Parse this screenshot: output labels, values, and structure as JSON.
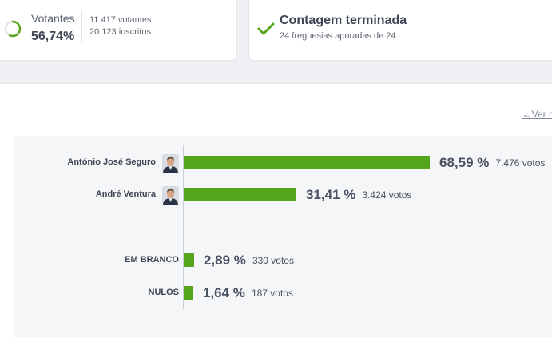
{
  "votantes": {
    "label": "Votantes",
    "percent": "56,74%",
    "percent_value": 56.74,
    "votes_line": "11.417 votantes",
    "inscritos_line": "20.123 inscritos"
  },
  "contagem": {
    "title": "Contagem terminada",
    "subtitle": "24 freguesias apuradas de 24"
  },
  "back_link": {
    "arrow": "←",
    "label": "Ver r"
  },
  "results": [
    {
      "name": "António José Seguro",
      "percent": "68,59 %",
      "votes": "7.476 votos",
      "share": 68.59,
      "avatar": "avatar-photo"
    },
    {
      "name": "André Ventura",
      "percent": "31,41 %",
      "votes": "3.424 votos",
      "share": 31.41,
      "avatar": "avatar-photo"
    },
    {
      "name": "EM BRANCO",
      "percent": "2,89 %",
      "votes": "330 votos",
      "share": 2.89
    },
    {
      "name": "NULOS",
      "percent": "1,64 %",
      "votes": "187 votos",
      "share": 1.64
    }
  ],
  "colors": {
    "bar": "#55a51c",
    "check": "#55a51c",
    "ring_progress": "#55a51c",
    "ring_track": "#e1e4e8"
  }
}
